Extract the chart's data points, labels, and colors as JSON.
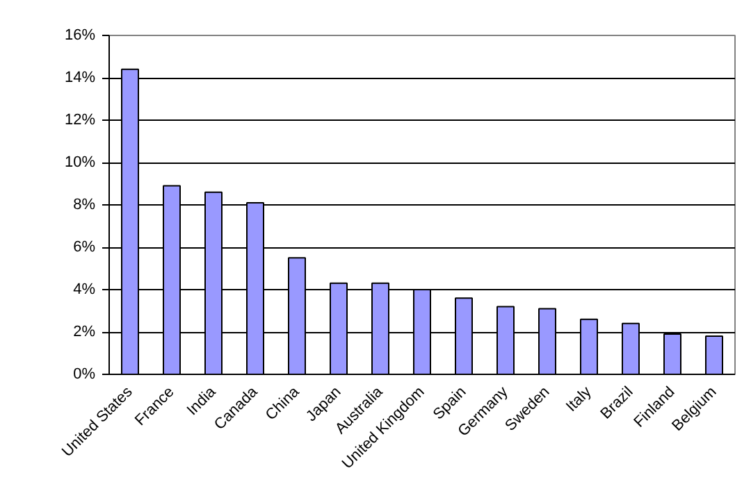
{
  "chart_data": {
    "type": "bar",
    "categories": [
      "United States",
      "France",
      "India",
      "Canada",
      "China",
      "Japan",
      "Australia",
      "United Kingdom",
      "Spain",
      "Germany",
      "Sweden",
      "Italy",
      "Brazil",
      "Finland",
      "Belgium"
    ],
    "values": [
      14.4,
      8.9,
      8.6,
      8.1,
      5.5,
      4.3,
      4.3,
      4.0,
      3.6,
      3.2,
      3.1,
      2.6,
      2.4,
      1.9,
      1.8
    ],
    "color": "#9999ff",
    "ylim": [
      0,
      16
    ],
    "yticks": [
      {
        "value": 0,
        "label": "0%"
      },
      {
        "value": 2,
        "label": "2%"
      },
      {
        "value": 4,
        "label": "4%"
      },
      {
        "value": 6,
        "label": "6%"
      },
      {
        "value": 8,
        "label": "8%"
      },
      {
        "value": 10,
        "label": "10%"
      },
      {
        "value": 12,
        "label": "12%"
      },
      {
        "value": 14,
        "label": "14%"
      },
      {
        "value": 16,
        "label": "16%"
      }
    ],
    "grid": "y"
  }
}
